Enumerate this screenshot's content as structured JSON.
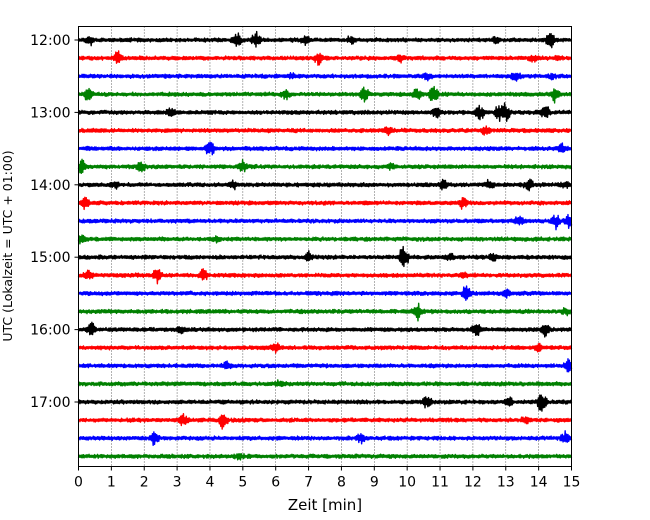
{
  "chart_data": {
    "type": "line",
    "title": "",
    "xlabel": "Zeit  [min]",
    "ylabel": "UTC (Lokalzeit = UTC + 01:00)",
    "xlim": [
      0,
      15
    ],
    "x_ticks": [
      "0",
      "1",
      "2",
      "3",
      "4",
      "5",
      "6",
      "7",
      "8",
      "9",
      "10",
      "11",
      "12",
      "13",
      "14",
      "15"
    ],
    "y_tick_labels": [
      "12:00",
      "13:00",
      "14:00",
      "15:00",
      "16:00",
      "17:00"
    ],
    "y_tick_rows": [
      0,
      4,
      8,
      12,
      16,
      20
    ],
    "grid": "vertical-dotted",
    "legend": "none",
    "trace_colors": [
      "#000000",
      "#ff0000",
      "#0000ff",
      "#008000"
    ],
    "trace_rows": [
      {
        "start": "12:00",
        "color": "#000000",
        "events": [
          [
            0.35,
            0.5
          ],
          [
            4.8,
            1
          ],
          [
            5.4,
            0.9
          ],
          [
            6.9,
            0.6
          ],
          [
            8.3,
            0.4
          ],
          [
            12.7,
            0.4
          ],
          [
            14.35,
            1
          ]
        ]
      },
      {
        "start": "12:15",
        "color": "#ff0000",
        "events": [
          [
            1.2,
            1
          ],
          [
            7.3,
            0.7
          ],
          [
            9.8,
            0.5
          ],
          [
            13.8,
            0.4
          ],
          [
            14.6,
            0.3
          ]
        ]
      },
      {
        "start": "12:30",
        "color": "#0000ff",
        "events": [
          [
            6.5,
            0.3
          ],
          [
            10.6,
            0.4
          ],
          [
            13.3,
            0.6
          ],
          [
            14.4,
            0.3
          ]
        ]
      },
      {
        "start": "12:45",
        "color": "#008000",
        "events": [
          [
            0.3,
            1
          ],
          [
            6.3,
            0.5
          ],
          [
            8.7,
            1
          ],
          [
            10.3,
            0.7
          ],
          [
            10.8,
            1
          ],
          [
            14.5,
            0.8
          ]
        ]
      },
      {
        "start": "13:00",
        "color": "#000000",
        "events": [
          [
            2.8,
            0.5
          ],
          [
            10.9,
            0.7
          ],
          [
            12.2,
            1
          ],
          [
            12.8,
            0.9
          ],
          [
            13.0,
            1
          ],
          [
            14.2,
            0.8
          ]
        ]
      },
      {
        "start": "13:15",
        "color": "#ff0000",
        "events": [
          [
            9.4,
            0.5
          ],
          [
            12.4,
            0.6
          ]
        ]
      },
      {
        "start": "13:30",
        "color": "#0000ff",
        "events": [
          [
            4.0,
            1
          ],
          [
            14.7,
            0.6
          ]
        ]
      },
      {
        "start": "13:45",
        "color": "#008000",
        "events": [
          [
            0.1,
            1
          ],
          [
            1.9,
            0.7
          ],
          [
            5.0,
            0.6
          ],
          [
            9.5,
            0.3
          ]
        ]
      },
      {
        "start": "14:00",
        "color": "#000000",
        "events": [
          [
            1.1,
            0.4
          ],
          [
            4.7,
            0.5
          ],
          [
            11.1,
            0.6
          ],
          [
            12.5,
            0.5
          ],
          [
            13.7,
            0.8
          ],
          [
            14.8,
            0.4
          ]
        ]
      },
      {
        "start": "14:15",
        "color": "#ff0000",
        "events": [
          [
            0.2,
            0.7
          ],
          [
            11.7,
            0.6
          ]
        ]
      },
      {
        "start": "14:30",
        "color": "#0000ff",
        "events": [
          [
            13.4,
            0.8
          ],
          [
            14.5,
            1
          ],
          [
            14.9,
            0.8
          ]
        ]
      },
      {
        "start": "14:45",
        "color": "#008000",
        "events": [
          [
            0.1,
            0.7
          ],
          [
            4.2,
            0.4
          ]
        ]
      },
      {
        "start": "15:00",
        "color": "#000000",
        "events": [
          [
            7.0,
            0.5
          ],
          [
            9.9,
            1.6
          ],
          [
            11.3,
            0.4
          ],
          [
            12.6,
            0.4
          ]
        ]
      },
      {
        "start": "15:15",
        "color": "#ff0000",
        "events": [
          [
            0.3,
            0.6
          ],
          [
            2.4,
            1
          ],
          [
            3.8,
            0.8
          ],
          [
            11.7,
            0.3
          ]
        ]
      },
      {
        "start": "15:30",
        "color": "#0000ff",
        "events": [
          [
            11.8,
            0.9
          ],
          [
            13.0,
            0.5
          ]
        ]
      },
      {
        "start": "15:45",
        "color": "#008000",
        "events": [
          [
            10.3,
            1
          ],
          [
            14.8,
            0.4
          ]
        ]
      },
      {
        "start": "16:00",
        "color": "#000000",
        "events": [
          [
            0.4,
            0.9
          ],
          [
            3.1,
            0.4
          ],
          [
            12.1,
            0.8
          ],
          [
            14.2,
            0.8
          ]
        ]
      },
      {
        "start": "16:15",
        "color": "#ff0000",
        "events": [
          [
            6.0,
            0.5
          ],
          [
            14.0,
            0.4
          ]
        ]
      },
      {
        "start": "16:30",
        "color": "#0000ff",
        "events": [
          [
            4.5,
            0.4
          ],
          [
            14.9,
            0.8
          ]
        ]
      },
      {
        "start": "16:45",
        "color": "#008000",
        "events": [
          [
            6.1,
            0.3
          ]
        ]
      },
      {
        "start": "17:00",
        "color": "#000000",
        "events": [
          [
            10.6,
            0.8
          ],
          [
            13.1,
            0.4
          ],
          [
            14.1,
            1.3
          ]
        ]
      },
      {
        "start": "17:15",
        "color": "#ff0000",
        "events": [
          [
            3.2,
            0.7
          ],
          [
            4.4,
            0.9
          ],
          [
            13.6,
            0.4
          ]
        ]
      },
      {
        "start": "17:30",
        "color": "#0000ff",
        "events": [
          [
            2.3,
            0.9
          ],
          [
            8.6,
            0.5
          ],
          [
            14.8,
            0.7
          ]
        ]
      },
      {
        "start": "17:45",
        "color": "#008000",
        "events": [
          [
            4.9,
            0.3
          ]
        ]
      }
    ]
  }
}
